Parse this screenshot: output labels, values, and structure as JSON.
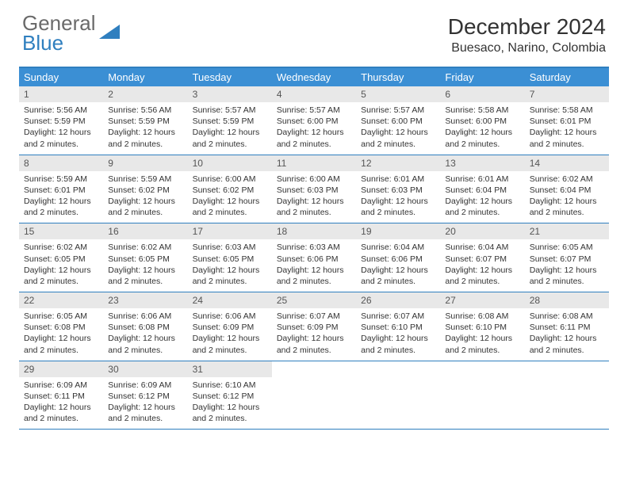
{
  "brand": {
    "part1": "General",
    "part2": "Blue"
  },
  "title": "December 2024",
  "location": "Buesaco, Narino, Colombia",
  "colors": {
    "header_bg": "#3b8fd4",
    "border": "#2f7fbf",
    "daynum_bg": "#e8e8e8",
    "text": "#333333",
    "logo_gray": "#6a6a6a",
    "logo_blue": "#2f7fbf"
  },
  "weekdays": [
    "Sunday",
    "Monday",
    "Tuesday",
    "Wednesday",
    "Thursday",
    "Friday",
    "Saturday"
  ],
  "weeks": [
    [
      {
        "n": "1",
        "sr": "5:56 AM",
        "ss": "5:59 PM",
        "dl": "12 hours and 2 minutes."
      },
      {
        "n": "2",
        "sr": "5:56 AM",
        "ss": "5:59 PM",
        "dl": "12 hours and 2 minutes."
      },
      {
        "n": "3",
        "sr": "5:57 AM",
        "ss": "5:59 PM",
        "dl": "12 hours and 2 minutes."
      },
      {
        "n": "4",
        "sr": "5:57 AM",
        "ss": "6:00 PM",
        "dl": "12 hours and 2 minutes."
      },
      {
        "n": "5",
        "sr": "5:57 AM",
        "ss": "6:00 PM",
        "dl": "12 hours and 2 minutes."
      },
      {
        "n": "6",
        "sr": "5:58 AM",
        "ss": "6:00 PM",
        "dl": "12 hours and 2 minutes."
      },
      {
        "n": "7",
        "sr": "5:58 AM",
        "ss": "6:01 PM",
        "dl": "12 hours and 2 minutes."
      }
    ],
    [
      {
        "n": "8",
        "sr": "5:59 AM",
        "ss": "6:01 PM",
        "dl": "12 hours and 2 minutes."
      },
      {
        "n": "9",
        "sr": "5:59 AM",
        "ss": "6:02 PM",
        "dl": "12 hours and 2 minutes."
      },
      {
        "n": "10",
        "sr": "6:00 AM",
        "ss": "6:02 PM",
        "dl": "12 hours and 2 minutes."
      },
      {
        "n": "11",
        "sr": "6:00 AM",
        "ss": "6:03 PM",
        "dl": "12 hours and 2 minutes."
      },
      {
        "n": "12",
        "sr": "6:01 AM",
        "ss": "6:03 PM",
        "dl": "12 hours and 2 minutes."
      },
      {
        "n": "13",
        "sr": "6:01 AM",
        "ss": "6:04 PM",
        "dl": "12 hours and 2 minutes."
      },
      {
        "n": "14",
        "sr": "6:02 AM",
        "ss": "6:04 PM",
        "dl": "12 hours and 2 minutes."
      }
    ],
    [
      {
        "n": "15",
        "sr": "6:02 AM",
        "ss": "6:05 PM",
        "dl": "12 hours and 2 minutes."
      },
      {
        "n": "16",
        "sr": "6:02 AM",
        "ss": "6:05 PM",
        "dl": "12 hours and 2 minutes."
      },
      {
        "n": "17",
        "sr": "6:03 AM",
        "ss": "6:05 PM",
        "dl": "12 hours and 2 minutes."
      },
      {
        "n": "18",
        "sr": "6:03 AM",
        "ss": "6:06 PM",
        "dl": "12 hours and 2 minutes."
      },
      {
        "n": "19",
        "sr": "6:04 AM",
        "ss": "6:06 PM",
        "dl": "12 hours and 2 minutes."
      },
      {
        "n": "20",
        "sr": "6:04 AM",
        "ss": "6:07 PM",
        "dl": "12 hours and 2 minutes."
      },
      {
        "n": "21",
        "sr": "6:05 AM",
        "ss": "6:07 PM",
        "dl": "12 hours and 2 minutes."
      }
    ],
    [
      {
        "n": "22",
        "sr": "6:05 AM",
        "ss": "6:08 PM",
        "dl": "12 hours and 2 minutes."
      },
      {
        "n": "23",
        "sr": "6:06 AM",
        "ss": "6:08 PM",
        "dl": "12 hours and 2 minutes."
      },
      {
        "n": "24",
        "sr": "6:06 AM",
        "ss": "6:09 PM",
        "dl": "12 hours and 2 minutes."
      },
      {
        "n": "25",
        "sr": "6:07 AM",
        "ss": "6:09 PM",
        "dl": "12 hours and 2 minutes."
      },
      {
        "n": "26",
        "sr": "6:07 AM",
        "ss": "6:10 PM",
        "dl": "12 hours and 2 minutes."
      },
      {
        "n": "27",
        "sr": "6:08 AM",
        "ss": "6:10 PM",
        "dl": "12 hours and 2 minutes."
      },
      {
        "n": "28",
        "sr": "6:08 AM",
        "ss": "6:11 PM",
        "dl": "12 hours and 2 minutes."
      }
    ],
    [
      {
        "n": "29",
        "sr": "6:09 AM",
        "ss": "6:11 PM",
        "dl": "12 hours and 2 minutes."
      },
      {
        "n": "30",
        "sr": "6:09 AM",
        "ss": "6:12 PM",
        "dl": "12 hours and 2 minutes."
      },
      {
        "n": "31",
        "sr": "6:10 AM",
        "ss": "6:12 PM",
        "dl": "12 hours and 2 minutes."
      },
      null,
      null,
      null,
      null
    ]
  ],
  "labels": {
    "sunrise": "Sunrise:",
    "sunset": "Sunset:",
    "daylight": "Daylight:"
  }
}
